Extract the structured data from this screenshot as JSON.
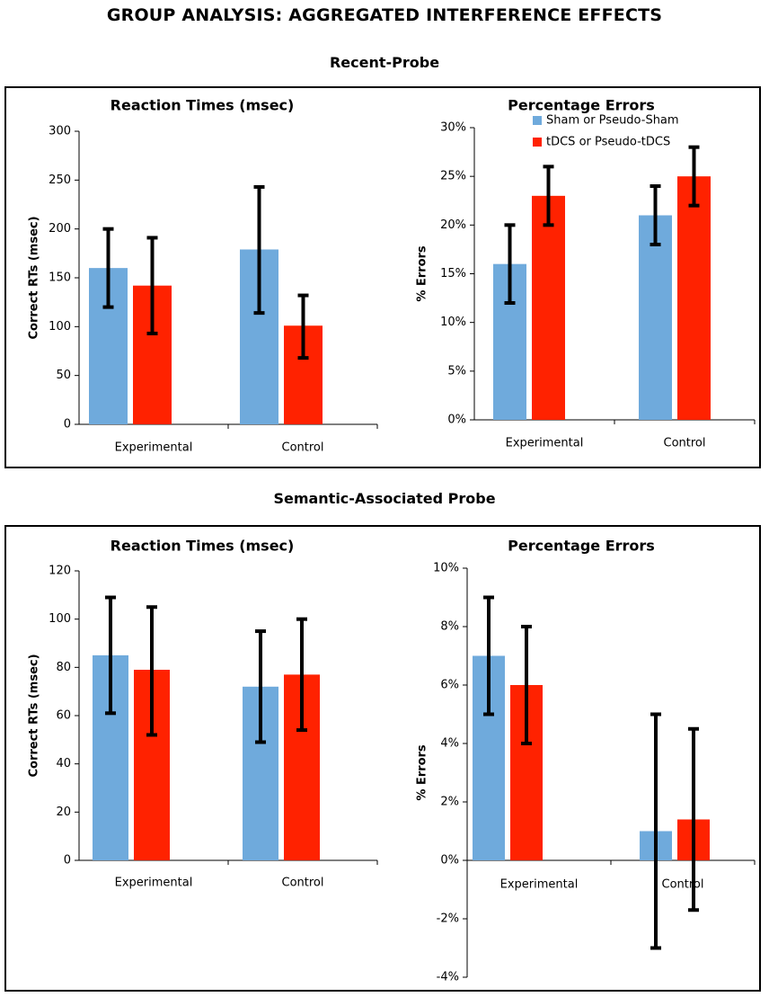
{
  "main_title": "GROUP ANALYSIS: AGGREGATED INTERFERENCE EFFECTS",
  "sections": [
    {
      "title": "Recent-Probe"
    },
    {
      "title": "Semantic-Associated Probe"
    }
  ],
  "legend": {
    "items": [
      {
        "label": "Sham or Pseudo-Sham",
        "color": "#6FAADC"
      },
      {
        "label": "tDCS or Pseudo-tDCS",
        "color": "#FF2200"
      }
    ]
  },
  "chart_data": [
    {
      "type": "bar",
      "title": "Reaction Times (msec)",
      "xlabel": "",
      "ylabel": "Correct RTs (msec)",
      "categories": [
        "Experimental",
        "Control"
      ],
      "ylim": [
        0,
        300
      ],
      "ticks": [
        0,
        50,
        100,
        150,
        200,
        250,
        300
      ],
      "tick_labels": [
        "0",
        "50",
        "100",
        "150",
        "200",
        "250",
        "300"
      ],
      "series": [
        {
          "name": "Sham or Pseudo-Sham",
          "values": [
            160,
            179
          ],
          "err_low": [
            120,
            114
          ],
          "err_high": [
            200,
            243
          ]
        },
        {
          "name": "tDCS or Pseudo-tDCS",
          "values": [
            142,
            101
          ],
          "err_low": [
            93,
            68
          ],
          "err_high": [
            191,
            132
          ]
        }
      ]
    },
    {
      "type": "bar",
      "title": "Percentage Errors",
      "xlabel": "",
      "ylabel": "% Errors",
      "categories": [
        "Experimental",
        "Control"
      ],
      "ylim": [
        0,
        30
      ],
      "ticks": [
        0,
        5,
        10,
        15,
        20,
        25,
        30
      ],
      "tick_labels": [
        "0%",
        "5%",
        "10%",
        "15%",
        "20%",
        "25%",
        "30%"
      ],
      "series": [
        {
          "name": "Sham or Pseudo-Sham",
          "values": [
            16,
            21
          ],
          "err_low": [
            12,
            18
          ],
          "err_high": [
            20,
            24
          ]
        },
        {
          "name": "tDCS or Pseudo-tDCS",
          "values": [
            23,
            25
          ],
          "err_low": [
            20,
            22
          ],
          "err_high": [
            26,
            28
          ]
        }
      ]
    },
    {
      "type": "bar",
      "title": "Reaction Times (msec)",
      "xlabel": "",
      "ylabel": "Correct RTs (msec)",
      "categories": [
        "Experimental",
        "Control"
      ],
      "ylim": [
        0,
        120
      ],
      "ticks": [
        0,
        20,
        40,
        60,
        80,
        100,
        120
      ],
      "tick_labels": [
        "0",
        "20",
        "40",
        "60",
        "80",
        "100",
        "120"
      ],
      "series": [
        {
          "name": "Sham or Pseudo-Sham",
          "values": [
            85,
            72
          ],
          "err_low": [
            61,
            49
          ],
          "err_high": [
            109,
            95
          ]
        },
        {
          "name": "tDCS or Pseudo-tDCS",
          "values": [
            79,
            77
          ],
          "err_low": [
            52,
            54
          ],
          "err_high": [
            105,
            100
          ]
        }
      ]
    },
    {
      "type": "bar",
      "title": "Percentage Errors",
      "xlabel": "",
      "ylabel": "% Errors",
      "categories": [
        "Experimental",
        "Control"
      ],
      "ylim": [
        -4,
        10
      ],
      "ticks": [
        -4,
        -2,
        0,
        2,
        4,
        6,
        8,
        10
      ],
      "tick_labels": [
        "-4%",
        "-2%",
        "0%",
        "2%",
        "4%",
        "6%",
        "8%",
        "10%"
      ],
      "series": [
        {
          "name": "Sham or Pseudo-Sham",
          "values": [
            7,
            1
          ],
          "err_low": [
            5,
            -3
          ],
          "err_high": [
            9,
            5
          ]
        },
        {
          "name": "tDCS or Pseudo-tDCS",
          "values": [
            6,
            1.4
          ],
          "err_low": [
            4,
            -1.7
          ],
          "err_high": [
            8,
            4.5
          ]
        }
      ]
    }
  ]
}
